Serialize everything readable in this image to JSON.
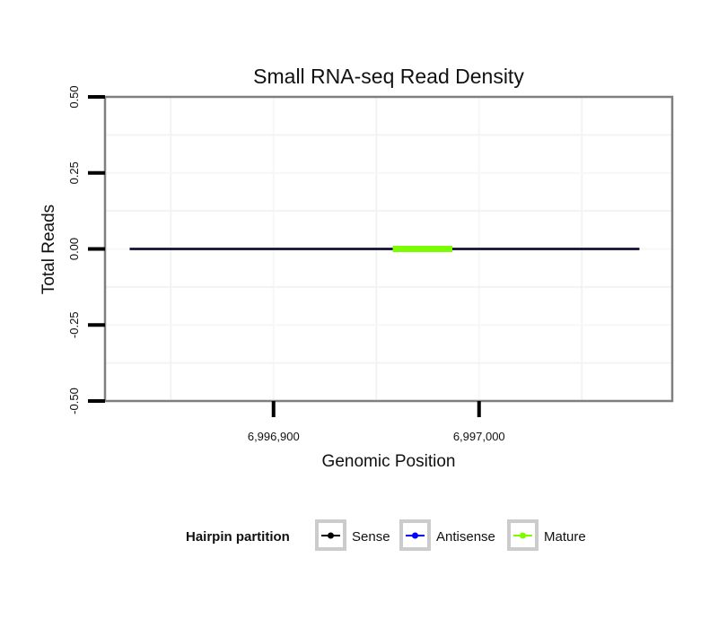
{
  "chart_data": {
    "type": "line",
    "title": "Small RNA-seq Read Density",
    "xlabel": "Genomic Position",
    "ylabel": "Total Reads",
    "xlim": [
      6996818,
      6997094
    ],
    "ylim": [
      -0.5,
      0.5
    ],
    "x_ticks": [
      6996900,
      6997000
    ],
    "x_tick_labels": [
      "6,996,900",
      "6,997,000"
    ],
    "x_minor_gridlines": [
      6996850,
      6996950,
      6997050
    ],
    "y_ticks": [
      -0.5,
      -0.25,
      0,
      0.25,
      0.5
    ],
    "y_tick_labels": [
      "-0.50",
      "-0.25",
      "0.00",
      "0.25",
      "0.50"
    ],
    "y_minor_gridlines": [
      -0.375,
      -0.125,
      0.125,
      0.375
    ],
    "grid": true,
    "series": [
      {
        "name": "Sense",
        "color": "#000000",
        "x": [
          6996830,
          6997078
        ],
        "y": [
          0,
          0
        ]
      },
      {
        "name": "Antisense",
        "color": "#0000ff",
        "x": [
          6996830,
          6997078
        ],
        "y": [
          0,
          0
        ]
      },
      {
        "name": "Mature",
        "color": "#7cfc00",
        "x": [
          6996958,
          6996987
        ],
        "y": [
          0,
          0
        ]
      }
    ],
    "legend": {
      "title": "Hairpin partition",
      "position": "bottom",
      "entries": [
        {
          "label": "Sense",
          "color": "#000000"
        },
        {
          "label": "Antisense",
          "color": "#0000ff"
        },
        {
          "label": "Mature",
          "color": "#7cfc00"
        }
      ]
    }
  }
}
